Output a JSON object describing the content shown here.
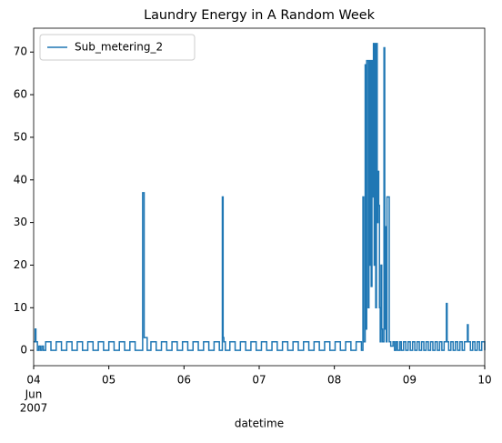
{
  "chart_data": {
    "type": "line",
    "title": "Laundry Energy in A Random Week",
    "xlabel": "datetime",
    "drawstyle": "steps-post",
    "x": [
      4.0,
      4.02,
      4.03,
      4.05,
      4.07,
      4.09,
      4.11,
      4.13,
      4.16,
      4.23,
      4.3,
      4.37,
      4.44,
      4.51,
      4.58,
      4.65,
      4.72,
      4.79,
      4.86,
      4.93,
      5.0,
      5.07,
      5.14,
      5.21,
      5.28,
      5.35,
      5.44,
      5.45,
      5.46,
      5.47,
      5.5,
      5.51,
      5.56,
      5.63,
      5.7,
      5.77,
      5.84,
      5.91,
      5.98,
      6.05,
      6.12,
      6.19,
      6.26,
      6.33,
      6.4,
      6.47,
      6.51,
      6.52,
      6.53,
      6.55,
      6.61,
      6.68,
      6.75,
      6.82,
      6.89,
      6.96,
      7.03,
      7.1,
      7.17,
      7.24,
      7.31,
      7.38,
      7.45,
      7.52,
      7.59,
      7.66,
      7.73,
      7.8,
      7.87,
      7.94,
      8.01,
      8.08,
      8.15,
      8.22,
      8.29,
      8.36,
      8.38,
      8.39,
      8.41,
      8.42,
      8.43,
      8.45,
      8.46,
      8.47,
      8.48,
      8.49,
      8.5,
      8.51,
      8.52,
      8.53,
      8.54,
      8.55,
      8.56,
      8.57,
      8.58,
      8.59,
      8.6,
      8.61,
      8.62,
      8.63,
      8.64,
      8.66,
      8.67,
      8.68,
      8.69,
      8.7,
      8.72,
      8.73,
      8.75,
      8.78,
      8.8,
      8.82,
      8.84,
      8.87,
      8.89,
      8.92,
      8.95,
      8.98,
      9.01,
      9.04,
      9.07,
      9.1,
      9.13,
      9.16,
      9.19,
      9.22,
      9.25,
      9.28,
      9.31,
      9.34,
      9.37,
      9.4,
      9.43,
      9.46,
      9.49,
      9.5,
      9.52,
      9.55,
      9.58,
      9.61,
      9.64,
      9.67,
      9.7,
      9.73,
      9.77,
      9.78,
      9.79,
      9.81,
      9.84,
      9.87,
      9.9,
      9.93,
      9.96,
      10.0
    ],
    "series": [
      {
        "name": "Sub_metering_2",
        "color": "#1f77b4",
        "values": [
          2,
          5,
          2,
          0,
          1,
          0,
          1,
          0,
          2,
          0,
          2,
          0,
          2,
          0,
          2,
          0,
          2,
          0,
          2,
          0,
          2,
          0,
          2,
          0,
          2,
          0,
          0,
          37,
          37,
          3,
          3,
          0,
          2,
          0,
          2,
          0,
          2,
          0,
          2,
          0,
          2,
          0,
          2,
          0,
          2,
          0,
          36,
          3,
          2,
          0,
          2,
          0,
          2,
          0,
          2,
          0,
          2,
          0,
          2,
          0,
          2,
          0,
          2,
          0,
          2,
          0,
          2,
          0,
          2,
          0,
          2,
          0,
          2,
          0,
          2,
          0,
          36,
          2,
          67,
          5,
          68,
          10,
          68,
          20,
          68,
          15,
          68,
          36,
          72,
          20,
          72,
          10,
          72,
          30,
          42,
          34,
          10,
          2,
          20,
          5,
          2,
          71,
          5,
          29,
          2,
          36,
          36,
          2,
          1,
          2,
          0,
          2,
          0,
          2,
          0,
          2,
          0,
          2,
          0,
          2,
          0,
          2,
          0,
          2,
          0,
          2,
          0,
          2,
          0,
          2,
          0,
          2,
          0,
          2,
          11,
          2,
          0,
          2,
          0,
          2,
          0,
          2,
          0,
          2,
          6,
          2,
          2,
          0,
          2,
          0,
          2,
          0,
          2,
          0
        ]
      }
    ],
    "xlim": [
      4,
      10
    ],
    "xticks": [
      {
        "value": 4,
        "label": "04"
      },
      {
        "value": 5,
        "label": "05"
      },
      {
        "value": 6,
        "label": "06"
      },
      {
        "value": 7,
        "label": "07"
      },
      {
        "value": 8,
        "label": "08"
      },
      {
        "value": 9,
        "label": "09"
      },
      10
    ],
    "x_tick_sublabels": [
      "Jun",
      "2007"
    ],
    "ylim": [
      -3.6,
      75.6
    ],
    "yticks": [
      0,
      10,
      20,
      30,
      40,
      50,
      60,
      70
    ],
    "legend": "upper left"
  }
}
